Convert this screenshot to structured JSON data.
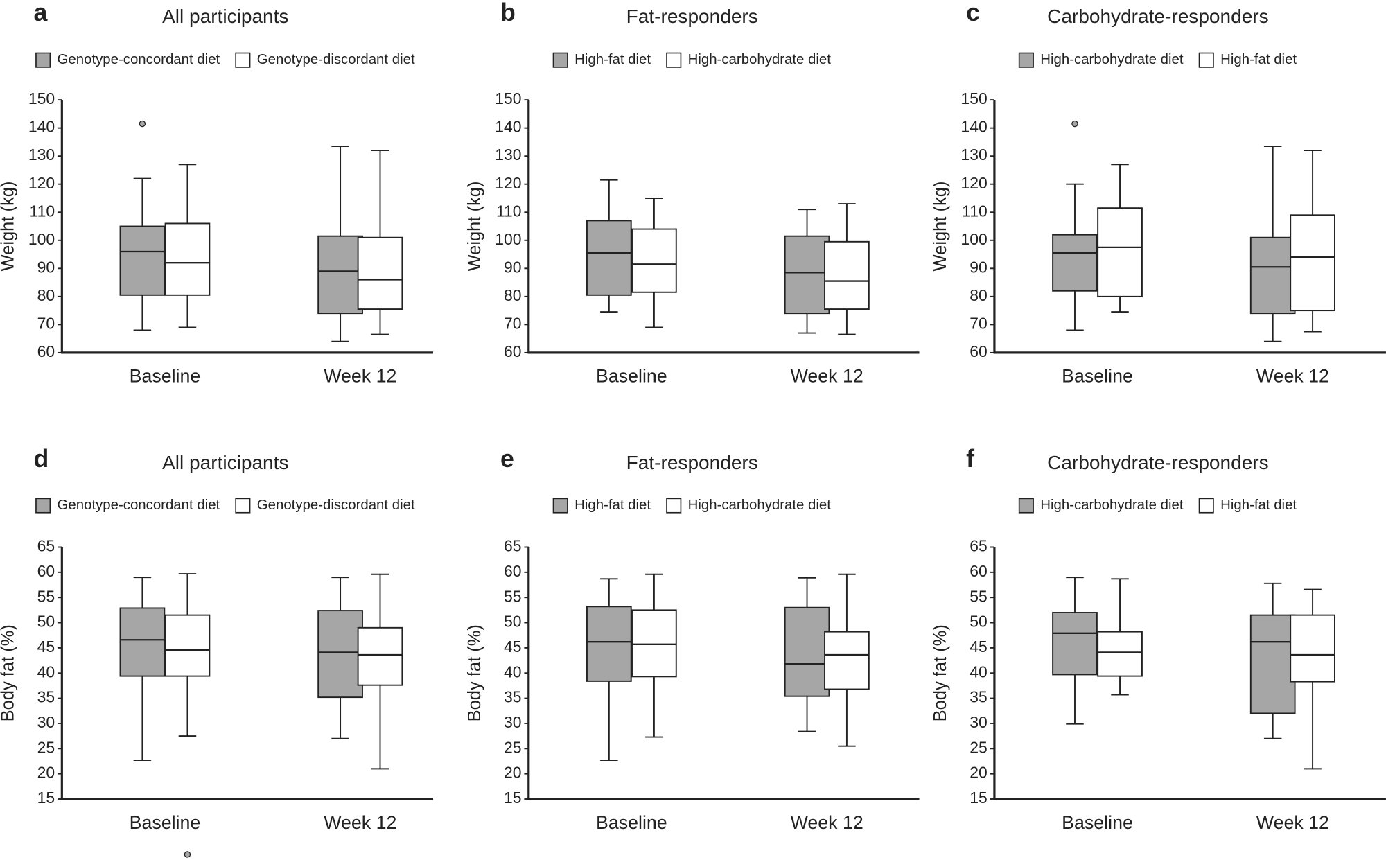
{
  "chart_data": [
    {
      "type": "box",
      "panel": "a",
      "title": "All participants",
      "y_label": "Weight (kg)",
      "categories": [
        "Baseline",
        "Week 12"
      ],
      "ylim": [
        60,
        150
      ],
      "yticks": [
        60,
        70,
        80,
        90,
        100,
        110,
        120,
        130,
        140,
        150
      ],
      "series": [
        {
          "name": "Genotype-concordant diet",
          "color": "#a6a6a6",
          "min": [
            68,
            64
          ],
          "q1": [
            80.5,
            74
          ],
          "median": [
            96,
            89
          ],
          "q3": [
            105,
            101.5
          ],
          "max": [
            122,
            133.5
          ],
          "outliers": [
            [
              141.5
            ],
            []
          ]
        },
        {
          "name": "Genotype-discordant diet",
          "color": "#ffffff",
          "min": [
            69,
            66.5
          ],
          "q1": [
            80.5,
            75.5
          ],
          "median": [
            92,
            86
          ],
          "q3": [
            106,
            101
          ],
          "max": [
            127,
            132
          ],
          "outliers": [
            [],
            []
          ]
        }
      ]
    },
    {
      "type": "box",
      "panel": "b",
      "title": "Fat-responders",
      "y_label": "Weight (kg)",
      "categories": [
        "Baseline",
        "Week 12"
      ],
      "ylim": [
        60,
        150
      ],
      "yticks": [
        60,
        70,
        80,
        90,
        100,
        110,
        120,
        130,
        140,
        150
      ],
      "series": [
        {
          "name": "High-fat diet",
          "color": "#a6a6a6",
          "min": [
            74.5,
            67
          ],
          "q1": [
            80.5,
            74
          ],
          "median": [
            95.5,
            88.5
          ],
          "q3": [
            107,
            101.5
          ],
          "max": [
            121.5,
            111
          ],
          "outliers": [
            [],
            []
          ]
        },
        {
          "name": "High-carbohydrate diet",
          "color": "#ffffff",
          "min": [
            69,
            66.5
          ],
          "q1": [
            81.5,
            75.5
          ],
          "median": [
            91.5,
            85.5
          ],
          "q3": [
            104,
            99.5
          ],
          "max": [
            115,
            113
          ],
          "outliers": [
            [],
            []
          ]
        }
      ]
    },
    {
      "type": "box",
      "panel": "c",
      "title": "Carbohydrate-responders",
      "y_label": "Weight (kg)",
      "categories": [
        "Baseline",
        "Week 12"
      ],
      "ylim": [
        60,
        150
      ],
      "yticks": [
        60,
        70,
        80,
        90,
        100,
        110,
        120,
        130,
        140,
        150
      ],
      "series": [
        {
          "name": "High-carbohydrate diet",
          "color": "#a6a6a6",
          "min": [
            68,
            64
          ],
          "q1": [
            82,
            74
          ],
          "median": [
            95.5,
            90.5
          ],
          "q3": [
            102,
            101
          ],
          "max": [
            120,
            133.5
          ],
          "outliers": [
            [
              141.5
            ],
            []
          ]
        },
        {
          "name": "High-fat diet",
          "color": "#ffffff",
          "min": [
            74.5,
            67.5
          ],
          "q1": [
            80,
            75
          ],
          "median": [
            97.5,
            94
          ],
          "q3": [
            111.5,
            109
          ],
          "max": [
            127,
            132
          ],
          "outliers": [
            [],
            []
          ]
        }
      ]
    },
    {
      "type": "box",
      "panel": "d",
      "title": "All participants",
      "y_label": "Body fat (%)",
      "categories": [
        "Baseline",
        "Week 12"
      ],
      "ylim": [
        15,
        65
      ],
      "yticks": [
        15,
        20,
        25,
        30,
        35,
        40,
        45,
        50,
        55,
        60,
        65
      ],
      "series": [
        {
          "name": "Genotype-concordant diet",
          "color": "#a6a6a6",
          "min": [
            22.7,
            27
          ],
          "q1": [
            39.4,
            35.2
          ],
          "median": [
            46.6,
            44.1
          ],
          "q3": [
            52.9,
            52.4
          ],
          "max": [
            59,
            59
          ],
          "outliers": [
            [],
            []
          ]
        },
        {
          "name": "Genotype-discordant diet",
          "color": "#ffffff",
          "min": [
            27.5,
            21
          ],
          "q1": [
            39.4,
            37.6
          ],
          "median": [
            44.6,
            43.6
          ],
          "q3": [
            51.5,
            49
          ],
          "max": [
            59.7,
            59.6
          ],
          "outliers": [
            [
              4
            ],
            []
          ]
        }
      ]
    },
    {
      "type": "box",
      "panel": "e",
      "title": "Fat-responders",
      "y_label": "Body fat (%)",
      "categories": [
        "Baseline",
        "Week 12"
      ],
      "ylim": [
        15,
        65
      ],
      "yticks": [
        15,
        20,
        25,
        30,
        35,
        40,
        45,
        50,
        55,
        60,
        65
      ],
      "series": [
        {
          "name": "High-fat diet",
          "color": "#a6a6a6",
          "min": [
            22.7,
            28.4
          ],
          "q1": [
            38.4,
            35.4
          ],
          "median": [
            46.2,
            41.8
          ],
          "q3": [
            53.2,
            53
          ],
          "max": [
            58.7,
            58.9
          ],
          "outliers": [
            [],
            []
          ]
        },
        {
          "name": "High-carbohydrate diet",
          "color": "#ffffff",
          "min": [
            27.3,
            25.5
          ],
          "q1": [
            39.3,
            36.8
          ],
          "median": [
            45.7,
            43.6
          ],
          "q3": [
            52.5,
            48.2
          ],
          "max": [
            59.6,
            59.6
          ],
          "outliers": [
            [],
            []
          ]
        }
      ]
    },
    {
      "type": "box",
      "panel": "f",
      "title": "Carbohydrate-responders",
      "y_label": "Body fat (%)",
      "categories": [
        "Baseline",
        "Week 12"
      ],
      "ylim": [
        15,
        65
      ],
      "yticks": [
        15,
        20,
        25,
        30,
        35,
        40,
        45,
        50,
        55,
        60,
        65
      ],
      "series": [
        {
          "name": "High-carbohydrate diet",
          "color": "#a6a6a6",
          "min": [
            29.9,
            27
          ],
          "q1": [
            39.7,
            32
          ],
          "median": [
            47.9,
            46.2
          ],
          "q3": [
            52,
            51.5
          ],
          "max": [
            59,
            57.8
          ],
          "outliers": [
            [],
            []
          ]
        },
        {
          "name": "High-fat diet",
          "color": "#ffffff",
          "min": [
            35.7,
            21
          ],
          "q1": [
            39.4,
            38.3
          ],
          "median": [
            44.1,
            43.6
          ],
          "q3": [
            48.2,
            51.5
          ],
          "max": [
            58.7,
            56.6
          ],
          "outliers": [
            [],
            []
          ]
        }
      ]
    }
  ]
}
